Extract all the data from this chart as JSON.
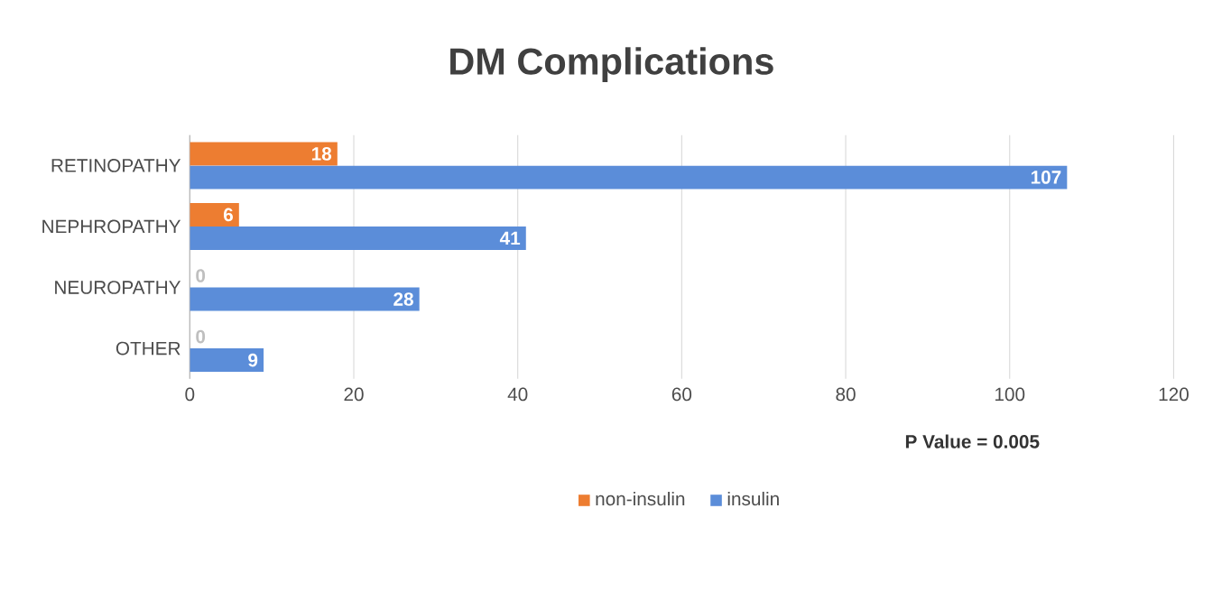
{
  "chart_data": {
    "type": "bar",
    "orientation": "horizontal",
    "title": "DM Complications",
    "categories": [
      "RETINOPATHY",
      "NEPHROPATHY",
      "NEUROPATHY",
      "OTHER"
    ],
    "series": [
      {
        "name": "non-insulin",
        "color": "#ed7d31",
        "values": [
          18,
          6,
          0,
          0
        ]
      },
      {
        "name": "insulin",
        "color": "#5b8dd9",
        "values": [
          107,
          41,
          28,
          9
        ]
      }
    ],
    "xlim": [
      0,
      120
    ],
    "xticks": [
      0,
      20,
      40,
      60,
      80,
      100,
      120
    ],
    "grid": "x",
    "legend": "bottom",
    "data_labels": true,
    "annotations": [
      "P Value = 0.005"
    ]
  }
}
